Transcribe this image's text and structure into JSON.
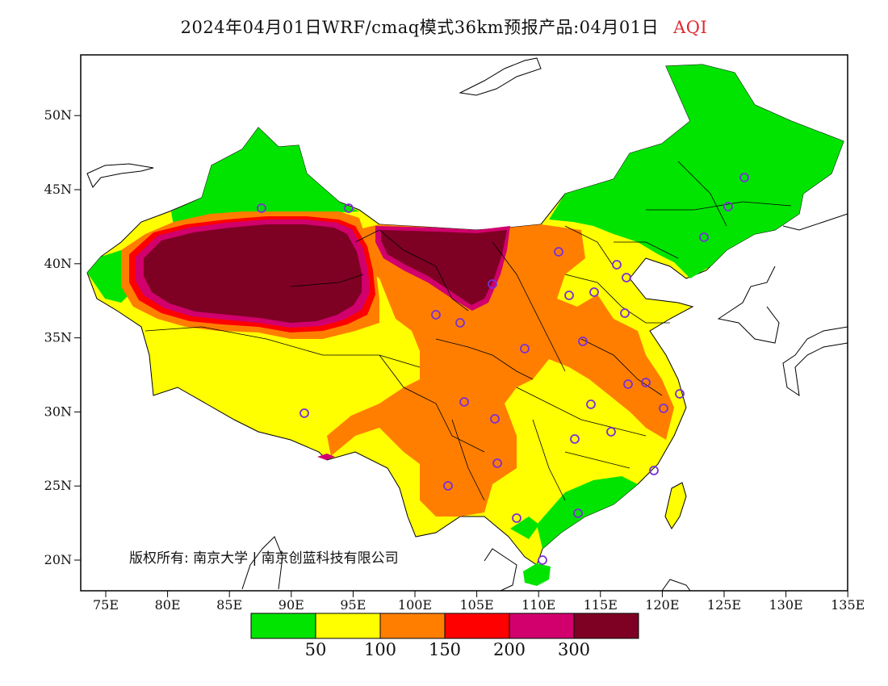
{
  "title": {
    "main": "2024年04月01日WRF/cmaq模式36km预报产品:04月01日",
    "variable": "AQI"
  },
  "axes": {
    "x_ticks": [
      "75E",
      "80E",
      "85E",
      "90E",
      "95E",
      "100E",
      "105E",
      "110E",
      "115E",
      "120E",
      "125E",
      "130E",
      "135E"
    ],
    "y_ticks": [
      "20N",
      "25N",
      "30N",
      "35N",
      "40N",
      "45N",
      "50N"
    ]
  },
  "legend": {
    "colors": [
      "#00e400",
      "#ffff00",
      "#ff7e00",
      "#ff0000",
      "#d1006d",
      "#7e0023"
    ],
    "labels": [
      "50",
      "100",
      "150",
      "200",
      "300"
    ]
  },
  "copyright": "版权所有: 南京大学 | 南京创蓝科技有限公司",
  "stations_color": "#7b2fd6"
}
